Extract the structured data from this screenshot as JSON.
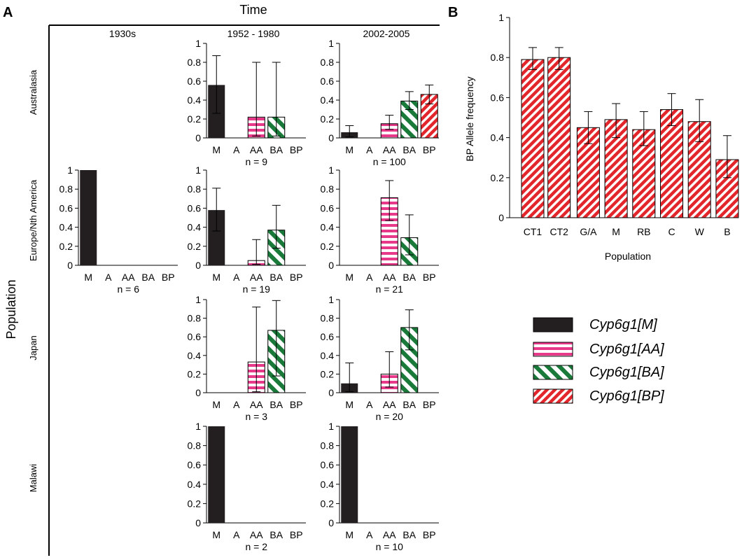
{
  "panel_a": {
    "label": "A",
    "time_title": "Time",
    "population_title": "Population",
    "periods": [
      "1930s",
      "1952 - 1980",
      "2002-2005"
    ],
    "regions": [
      "Australasia",
      "Europe/Nth America",
      "Japan",
      "Malawi"
    ]
  },
  "panel_b": {
    "label": "B"
  },
  "legend": [
    {
      "label": "Cyp6g1[M]",
      "pattern": "solid"
    },
    {
      "label": "Cyp6g1[AA]",
      "pattern": "hstripe"
    },
    {
      "label": "Cyp6g1[BA]",
      "pattern": "diag-green"
    },
    {
      "label": "Cyp6g1[BP]",
      "pattern": "diag-red"
    }
  ],
  "colors": {
    "M": "#231f20",
    "AA": "#e8388a",
    "BA": "#1a7a3a",
    "BP": "#e3262b",
    "axis": "#000000",
    "error_bar": "#000000"
  },
  "chart_data": [
    {
      "type": "bar",
      "panel": "A",
      "region": "Australasia",
      "period": "1952 - 1980",
      "categories": [
        "M",
        "A",
        "AA",
        "BA",
        "BP"
      ],
      "values": [
        0.56,
        0,
        0.22,
        0.22,
        0
      ],
      "error_upper": [
        0.87,
        null,
        0.8,
        0.8,
        null
      ],
      "error_lower": [
        0.26,
        null,
        0.02,
        0.02,
        null
      ],
      "n_label": "n = 9",
      "ylim": [
        0,
        1
      ],
      "yticks": [
        "0",
        "0.2",
        "0.4",
        "0.6",
        "0.8",
        "1"
      ]
    },
    {
      "type": "bar",
      "panel": "A",
      "region": "Australasia",
      "period": "2002-2005",
      "categories": [
        "M",
        "A",
        "AA",
        "BA",
        "BP"
      ],
      "values": [
        0.06,
        0,
        0.15,
        0.39,
        0.46
      ],
      "error_upper": [
        0.13,
        null,
        0.24,
        0.49,
        0.56
      ],
      "error_lower": [
        0.01,
        null,
        0.09,
        0.3,
        0.36
      ],
      "n_label": "n = 100",
      "ylim": [
        0,
        1
      ],
      "yticks": [
        "0",
        "0.2",
        "0.4",
        "0.6",
        "0.8",
        "1"
      ]
    },
    {
      "type": "bar",
      "panel": "A",
      "region": "Europe/Nth America",
      "period": "1930s",
      "categories": [
        "M",
        "A",
        "AA",
        "BA",
        "BP"
      ],
      "values": [
        1,
        0,
        0,
        0,
        0
      ],
      "error_upper": [
        null,
        null,
        null,
        null,
        null
      ],
      "error_lower": [
        null,
        null,
        null,
        null,
        null
      ],
      "n_label": "n = 6",
      "ylim": [
        0,
        1
      ],
      "yticks": [
        "0",
        "0.2",
        "0.4",
        "0.6",
        "0.8",
        "1"
      ]
    },
    {
      "type": "bar",
      "panel": "A",
      "region": "Europe/Nth America",
      "period": "1952 - 1980",
      "categories": [
        "M",
        "A",
        "AA",
        "BA",
        "BP"
      ],
      "values": [
        0.58,
        0,
        0.05,
        0.37,
        0
      ],
      "error_upper": [
        0.81,
        null,
        0.27,
        0.63,
        null
      ],
      "error_lower": [
        0.36,
        null,
        0.01,
        0.18,
        null
      ],
      "n_label": "n = 19",
      "ylim": [
        0,
        1
      ],
      "yticks": [
        "0",
        "0.2",
        "0.4",
        "0.6",
        "0.8",
        "1"
      ]
    },
    {
      "type": "bar",
      "panel": "A",
      "region": "Europe/Nth America",
      "period": "2002-2005",
      "categories": [
        "M",
        "A",
        "AA",
        "BA",
        "BP"
      ],
      "values": [
        0,
        0,
        0.71,
        0.29,
        0
      ],
      "error_upper": [
        null,
        null,
        0.89,
        0.53,
        null
      ],
      "error_lower": [
        null,
        null,
        0.47,
        0.11,
        null
      ],
      "n_label": "n = 21",
      "ylim": [
        0,
        1
      ],
      "yticks": [
        "0",
        "0.2",
        "0.4",
        "0.6",
        "0.8",
        "1"
      ]
    },
    {
      "type": "bar",
      "panel": "A",
      "region": "Japan",
      "period": "1952 - 1980",
      "categories": [
        "M",
        "A",
        "AA",
        "BA",
        "BP"
      ],
      "values": [
        0,
        0,
        0.33,
        0.67,
        0
      ],
      "error_upper": [
        null,
        null,
        0.92,
        0.99,
        null
      ],
      "error_lower": [
        null,
        null,
        0.01,
        0.18,
        null
      ],
      "n_label": "n = 3",
      "ylim": [
        0,
        1
      ],
      "yticks": [
        "0",
        "0.2",
        "0.4",
        "0.6",
        "0.8",
        "1"
      ]
    },
    {
      "type": "bar",
      "panel": "A",
      "region": "Japan",
      "period": "2002-2005",
      "categories": [
        "M",
        "A",
        "AA",
        "BA",
        "BP"
      ],
      "values": [
        0.1,
        0,
        0.2,
        0.7,
        0
      ],
      "error_upper": [
        0.32,
        null,
        0.44,
        0.89,
        null
      ],
      "error_lower": [
        0.01,
        null,
        0.06,
        0.46,
        null
      ],
      "n_label": "n = 20",
      "ylim": [
        0,
        1
      ],
      "yticks": [
        "0",
        "0.2",
        "0.4",
        "0.6",
        "0.8",
        "1"
      ]
    },
    {
      "type": "bar",
      "panel": "A",
      "region": "Malawi",
      "period": "1952 - 1980",
      "categories": [
        "M",
        "A",
        "AA",
        "BA",
        "BP"
      ],
      "values": [
        1,
        0,
        0,
        0,
        0
      ],
      "error_upper": [
        null,
        null,
        null,
        null,
        null
      ],
      "error_lower": [
        null,
        null,
        null,
        null,
        null
      ],
      "n_label": "n = 2",
      "ylim": [
        0,
        1
      ],
      "yticks": [
        "0",
        "0.2",
        "0.4",
        "0.6",
        "0.8",
        "1"
      ]
    },
    {
      "type": "bar",
      "panel": "A",
      "region": "Malawi",
      "period": "2002-2005",
      "categories": [
        "M",
        "A",
        "AA",
        "BA",
        "BP"
      ],
      "values": [
        1,
        0,
        0,
        0,
        0
      ],
      "error_upper": [
        null,
        null,
        null,
        null,
        null
      ],
      "error_lower": [
        null,
        null,
        null,
        null,
        null
      ],
      "n_label": "n = 10",
      "ylim": [
        0,
        1
      ],
      "yticks": [
        "0",
        "0.2",
        "0.4",
        "0.6",
        "0.8",
        "1"
      ]
    },
    {
      "type": "bar",
      "panel": "B",
      "categories": [
        "CT1",
        "CT2",
        "G/A",
        "M",
        "RB",
        "C",
        "W",
        "B"
      ],
      "values": [
        0.79,
        0.8,
        0.45,
        0.49,
        0.44,
        0.54,
        0.48,
        0.29
      ],
      "error_upper": [
        0.85,
        0.85,
        0.53,
        0.57,
        0.53,
        0.62,
        0.59,
        0.41
      ],
      "error_lower": [
        0.74,
        0.74,
        0.37,
        0.4,
        0.36,
        0.46,
        0.38,
        0.2
      ],
      "xlabel": "Population",
      "ylabel": "BP Allele frequency",
      "ylim": [
        0,
        1
      ],
      "yticks": [
        "0",
        "0.2",
        "0.4",
        "0.6",
        "0.8",
        "1"
      ]
    }
  ]
}
